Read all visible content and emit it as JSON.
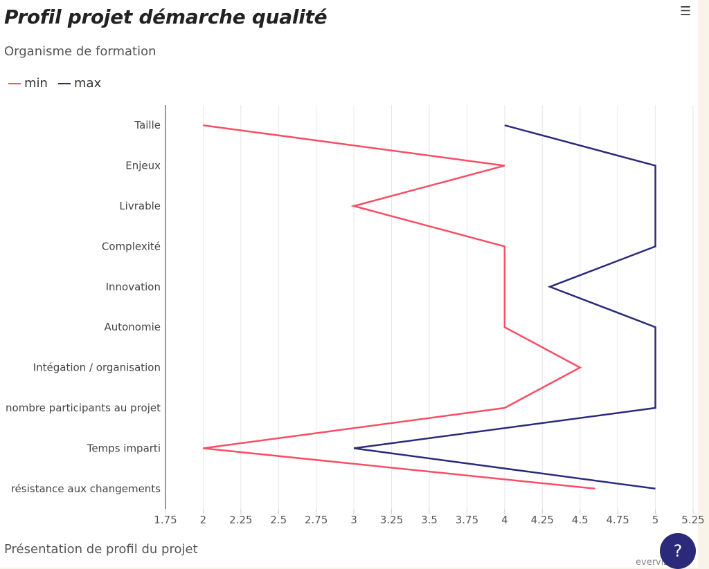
{
  "title": "Profil projet démarche qualité",
  "subtitle": "Organisme de formation",
  "caption": "Présentation de profil du projet",
  "credits": "everviz.com",
  "help_label": "?",
  "menu_icon": "hamburger-icon",
  "chart_data": {
    "type": "line",
    "orientation": "inverted",
    "categories": [
      "Taille",
      "Enjeux",
      "Livrable",
      "Complexité",
      "Innovation",
      "Autonomie",
      "Intégation / organisation",
      "nombre participants au projet",
      "Temps imparti",
      "résistance aux changements"
    ],
    "series": [
      {
        "name": "min",
        "color": "#f94d63",
        "values": [
          2,
          4,
          3,
          4,
          4,
          4,
          4.5,
          4,
          2,
          4.6
        ]
      },
      {
        "name": "max",
        "color": "#2b2a7a",
        "values": [
          4,
          5,
          5,
          5,
          4.3,
          5,
          5,
          5,
          3,
          5
        ]
      }
    ],
    "xlim": [
      1.75,
      5.25
    ],
    "xticks": [
      "1.75",
      "2",
      "2.25",
      "2.5",
      "2.75",
      "3",
      "3.25",
      "3.5",
      "3.75",
      "4",
      "4.25",
      "4.5",
      "4.75",
      "5",
      "5.25"
    ],
    "grid": true,
    "legend": "top-left"
  }
}
